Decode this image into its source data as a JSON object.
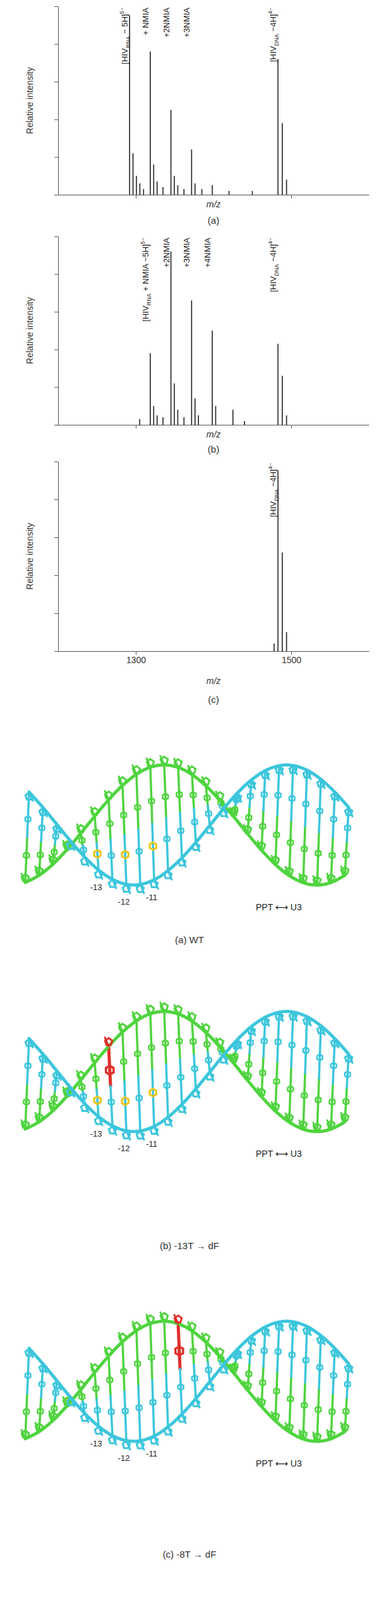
{
  "chart_data": [
    {
      "type": "stem",
      "caption": "(a)",
      "x_label": "m/z",
      "y_label": "Relative intensity",
      "xlim": [
        1200,
        1600
      ],
      "ylim": [
        0,
        100
      ],
      "xticks": [
        1300,
        1500
      ],
      "yticks": [
        0,
        20,
        40,
        60,
        80,
        100
      ],
      "tick_labels": false,
      "color": "#222222",
      "x": [
        1292.0,
        1296.4,
        1300.8,
        1305.2,
        1310.0,
        1318.6,
        1323.0,
        1327.4,
        1335.0,
        1345.2,
        1349.6,
        1354.0,
        1362.0,
        1371.8,
        1376.2,
        1385.0,
        1398.4,
        1420.0,
        1450.0,
        1483.0,
        1488.5,
        1494.0
      ],
      "values": [
        95,
        22,
        10,
        6,
        3,
        76,
        16,
        7,
        4,
        45,
        10,
        5,
        3,
        24,
        6,
        3,
        5,
        2,
        2,
        72,
        38,
        8
      ],
      "annotations": [
        {
          "x": 1292.0,
          "segments": [
            {
              "text": "[HIV"
            },
            {
              "sub": "RNA"
            },
            {
              "text": " − 5H]"
            },
            {
              "sup": "5−"
            }
          ]
        },
        {
          "x": 1318.6,
          "segments": [
            {
              "text": "+ NMIA"
            }
          ]
        },
        {
          "x": 1345.2,
          "segments": [
            {
              "text": "+2NMIA"
            }
          ]
        },
        {
          "x": 1371.8,
          "segments": [
            {
              "text": "+3NMIA"
            }
          ]
        },
        {
          "x": 1483.0,
          "segments": [
            {
              "text": "[HIV"
            },
            {
              "sub": "DNA"
            },
            {
              "text": " −4H]"
            },
            {
              "sup": "4−"
            }
          ]
        }
      ]
    },
    {
      "type": "stem",
      "caption": "(b)",
      "x_label": "m/z",
      "y_label": "Relative intensity",
      "xlim": [
        1200,
        1600
      ],
      "ylim": [
        0,
        100
      ],
      "xticks": [
        1300,
        1500
      ],
      "yticks": [
        0,
        20,
        40,
        60,
        80,
        100
      ],
      "tick_labels": false,
      "color": "#222222",
      "x": [
        1305.0,
        1318.6,
        1323.0,
        1327.4,
        1335.0,
        1345.2,
        1349.6,
        1354.0,
        1362.0,
        1371.8,
        1376.2,
        1380.6,
        1398.4,
        1402.8,
        1425.0,
        1440.0,
        1483.0,
        1488.5,
        1494.0
      ],
      "values": [
        3,
        38,
        10,
        5,
        4,
        92,
        22,
        8,
        4,
        66,
        14,
        5,
        50,
        10,
        8,
        2,
        43,
        26,
        5
      ],
      "annotations": [
        {
          "x": 1318.6,
          "segments": [
            {
              "text": "[HIV"
            },
            {
              "sub": "RNA"
            },
            {
              "text": " + NMIA −5H]"
            },
            {
              "sup": "5−"
            }
          ]
        },
        {
          "x": 1345.2,
          "segments": [
            {
              "text": "+2NMIA"
            }
          ]
        },
        {
          "x": 1371.8,
          "segments": [
            {
              "text": "+3NMIA"
            }
          ]
        },
        {
          "x": 1398.4,
          "segments": [
            {
              "text": "+4NMIA"
            }
          ]
        },
        {
          "x": 1483.0,
          "segments": [
            {
              "text": "[HIV"
            },
            {
              "sub": "DNA"
            },
            {
              "text": " −4H]"
            },
            {
              "sup": "4−"
            }
          ]
        }
      ]
    },
    {
      "type": "stem",
      "caption": "(c)",
      "x_label": "m/z",
      "y_label": "Relative intensity",
      "xlim": [
        1200,
        1600
      ],
      "ylim": [
        0,
        100
      ],
      "xticks": [
        1300,
        1500
      ],
      "yticks": [
        0,
        20,
        40,
        60,
        80,
        100
      ],
      "tick_labels": "x",
      "color": "#222222",
      "x": [
        1478.0,
        1483.0,
        1488.5,
        1494.0
      ],
      "values": [
        4,
        95,
        52,
        10
      ],
      "annotations": [
        {
          "x": 1483.0,
          "segments": [
            {
              "text": "[HIV"
            },
            {
              "sub": "DNA"
            },
            {
              "text": " −4H]"
            },
            {
              "sup": "4−"
            }
          ]
        }
      ]
    }
  ],
  "structures": [
    {
      "caption": "(a) WT",
      "labels": [
        "-11",
        "-12",
        "-13"
      ],
      "region": "PPT ⟷ U3"
    },
    {
      "caption": "(b) -13T → dF",
      "labels": [
        "-11",
        "-12",
        "-13"
      ],
      "region": "PPT ⟷ U3"
    },
    {
      "caption": "(c) -8T → dF",
      "labels": [
        "-11",
        "-12",
        "-13"
      ],
      "region": "PPT ⟷ U3"
    }
  ]
}
